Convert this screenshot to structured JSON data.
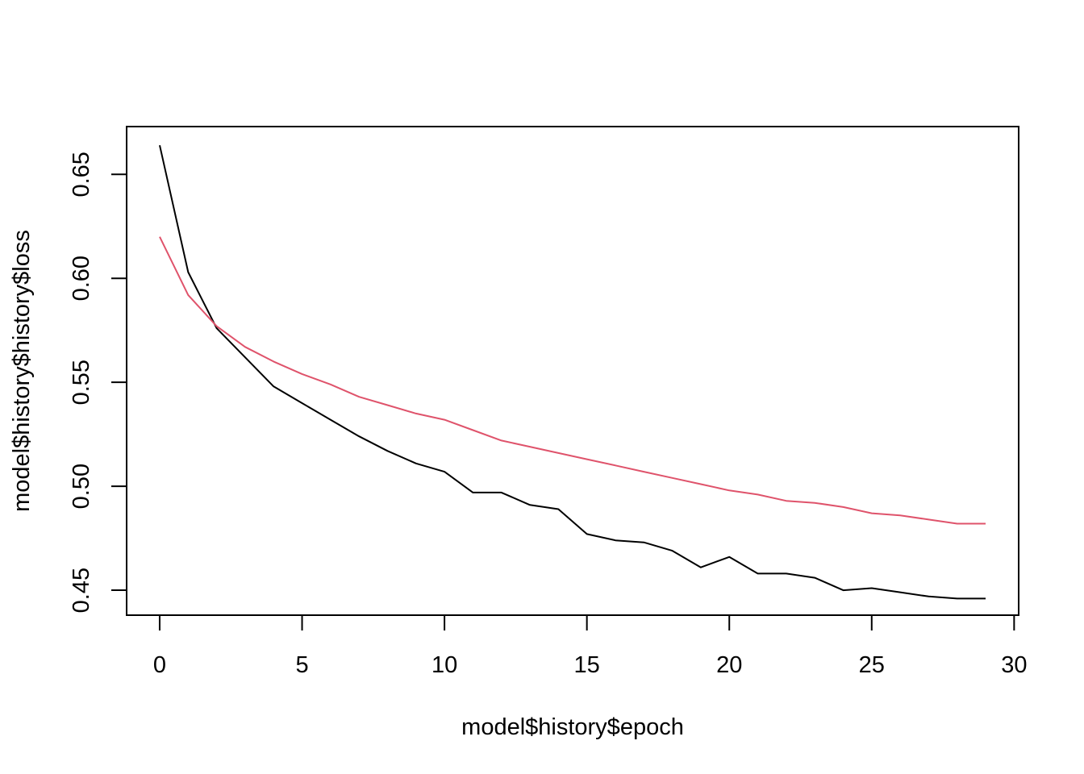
{
  "chart_data": {
    "type": "line",
    "title": "",
    "xlabel": "model$history$epoch",
    "ylabel": "model$history$history$loss",
    "xlim": [
      -1.16,
      30.16
    ],
    "ylim": [
      0.438,
      0.673
    ],
    "x_ticks": [
      0,
      5,
      10,
      15,
      20,
      25,
      30
    ],
    "x_tick_labels": [
      "0",
      "5",
      "10",
      "15",
      "20",
      "25",
      "30"
    ],
    "y_ticks": [
      0.45,
      0.5,
      0.55,
      0.6,
      0.65
    ],
    "y_tick_labels": [
      "0.45",
      "0.50",
      "0.55",
      "0.60",
      "0.65"
    ],
    "grid": false,
    "legend": "none",
    "x": [
      0,
      1,
      2,
      3,
      4,
      5,
      6,
      7,
      8,
      9,
      10,
      11,
      12,
      13,
      14,
      15,
      16,
      17,
      18,
      19,
      20,
      21,
      22,
      23,
      24,
      25,
      26,
      27,
      28,
      29
    ],
    "series": [
      {
        "color": "#000000",
        "values": [
          0.664,
          0.603,
          0.576,
          0.562,
          0.548,
          0.54,
          0.532,
          0.524,
          0.517,
          0.511,
          0.507,
          0.497,
          0.497,
          0.491,
          0.489,
          0.477,
          0.474,
          0.473,
          0.469,
          0.461,
          0.466,
          0.458,
          0.458,
          0.456,
          0.45,
          0.451,
          0.449,
          0.447,
          0.446,
          0.446
        ]
      },
      {
        "color": "#DF536B",
        "values": [
          0.62,
          0.592,
          0.577,
          0.567,
          0.56,
          0.554,
          0.549,
          0.543,
          0.539,
          0.535,
          0.532,
          0.527,
          0.522,
          0.519,
          0.516,
          0.513,
          0.51,
          0.507,
          0.504,
          0.501,
          0.498,
          0.496,
          0.493,
          0.492,
          0.49,
          0.487,
          0.486,
          0.484,
          0.482,
          0.482
        ]
      }
    ]
  }
}
